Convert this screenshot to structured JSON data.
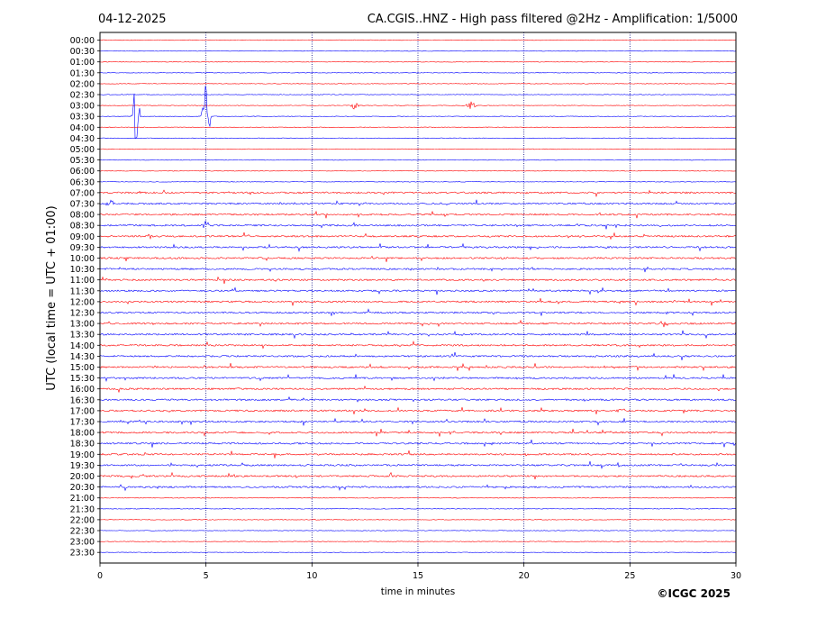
{
  "header": {
    "date": "04-12-2025",
    "title": "CA.CGIS..HNZ - High pass filtered @2Hz - Amplification: 1/5000"
  },
  "footer": {
    "copyright": "©ICGC 2025"
  },
  "colors": {
    "odd_trace": "#ff0000",
    "even_trace": "#0000ff",
    "axis": "#000000",
    "grid": "#000080"
  },
  "chart_data": {
    "type": "line",
    "xlabel": "time in minutes",
    "ylabel": "UTC (local time = UTC + 01:00)",
    "xlim": [
      0,
      30
    ],
    "x_ticks": [
      0,
      5,
      10,
      15,
      20,
      25,
      30
    ],
    "grid": "vertical dotted at 5-minute intervals",
    "rows": [
      "00:00",
      "00:30",
      "01:00",
      "01:30",
      "02:00",
      "02:30",
      "03:00",
      "03:30",
      "04:00",
      "04:30",
      "05:00",
      "05:30",
      "06:00",
      "06:30",
      "07:00",
      "07:30",
      "08:00",
      "08:30",
      "09:00",
      "09:30",
      "10:00",
      "10:30",
      "11:00",
      "11:30",
      "12:00",
      "12:30",
      "13:00",
      "13:30",
      "14:00",
      "14:30",
      "15:00",
      "15:30",
      "16:00",
      "16:30",
      "17:00",
      "17:30",
      "18:00",
      "18:30",
      "19:00",
      "19:30",
      "20:00",
      "20:30",
      "21:00",
      "21:30",
      "22:00",
      "22:30",
      "23:00",
      "23:30"
    ],
    "events": [
      {
        "row": "03:00",
        "minute": 12.0,
        "amp": 0.9
      },
      {
        "row": "03:00",
        "minute": 17.5,
        "amp": 0.9
      },
      {
        "row": "03:30",
        "minute": 1.7,
        "amp": 6.0
      },
      {
        "row": "03:30",
        "minute": 5.0,
        "amp": 6.0
      },
      {
        "row": "07:30",
        "minute": 0.5,
        "amp": 0.8
      },
      {
        "row": "08:30",
        "minute": 5.0,
        "amp": 0.7
      },
      {
        "row": "13:00",
        "minute": 26.6,
        "amp": 0.7
      },
      {
        "row": "17:00",
        "minute": 24.6,
        "amp": 0.7
      }
    ]
  }
}
